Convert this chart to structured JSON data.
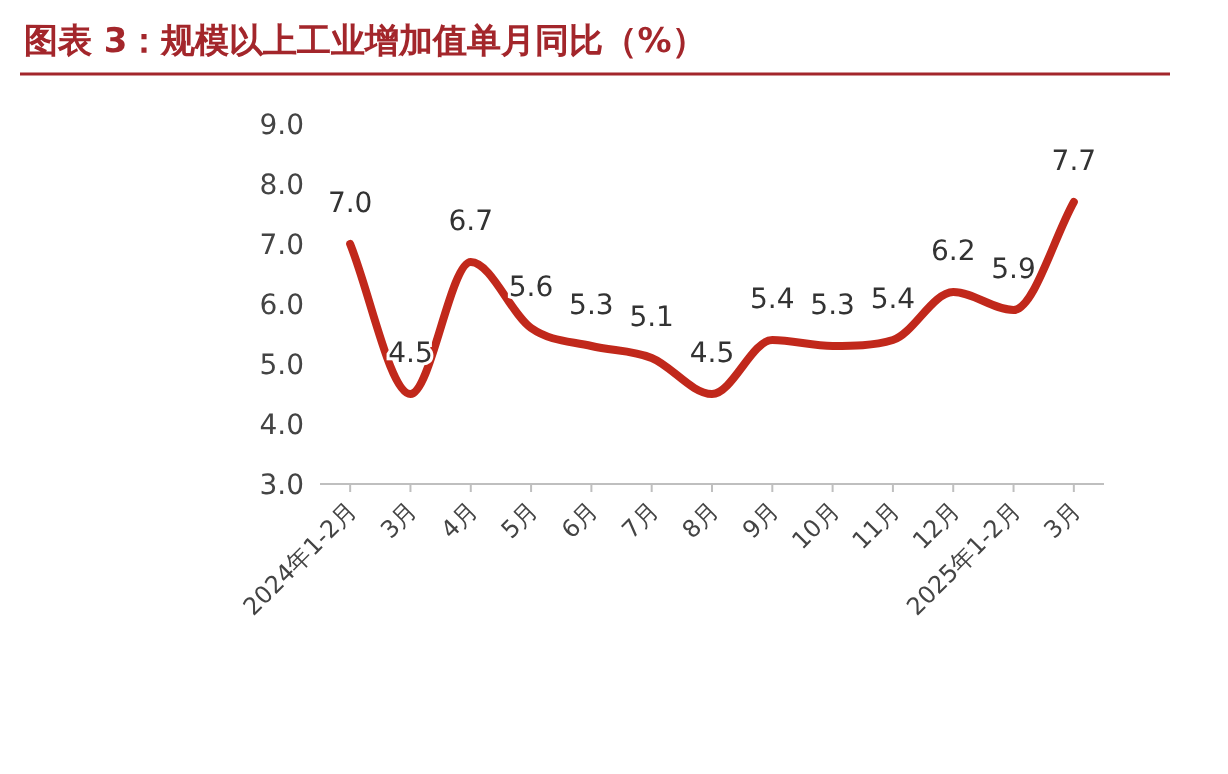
{
  "chart_data": {
    "type": "line",
    "title": "图表 3：规模以上工业增加值单月同比（%）",
    "categories": [
      "2024年1-2月",
      "3月",
      "4月",
      "5月",
      "6月",
      "7月",
      "8月",
      "9月",
      "10月",
      "11月",
      "12月",
      "2025年1-2月",
      "3月"
    ],
    "values": [
      7.0,
      4.5,
      6.7,
      5.6,
      5.3,
      5.1,
      4.5,
      5.4,
      5.3,
      5.4,
      6.2,
      5.9,
      7.7
    ],
    "color": "#c1281b",
    "ylim": [
      3,
      9
    ],
    "yticks": [
      {
        "value": 3,
        "label": "3.0"
      },
      {
        "value": 4,
        "label": "4.0"
      },
      {
        "value": 5,
        "label": "5.0"
      },
      {
        "value": 6,
        "label": "6.0"
      },
      {
        "value": 7,
        "label": "7.0"
      },
      {
        "value": 8,
        "label": "8.0"
      },
      {
        "value": 9,
        "label": "9.0"
      }
    ],
    "value_labels": [
      "7.0",
      "4.5",
      "6.7",
      "5.6",
      "5.3",
      "5.1",
      "4.5",
      "5.4",
      "5.3",
      "5.4",
      "6.2",
      "5.9",
      "7.7"
    ]
  }
}
